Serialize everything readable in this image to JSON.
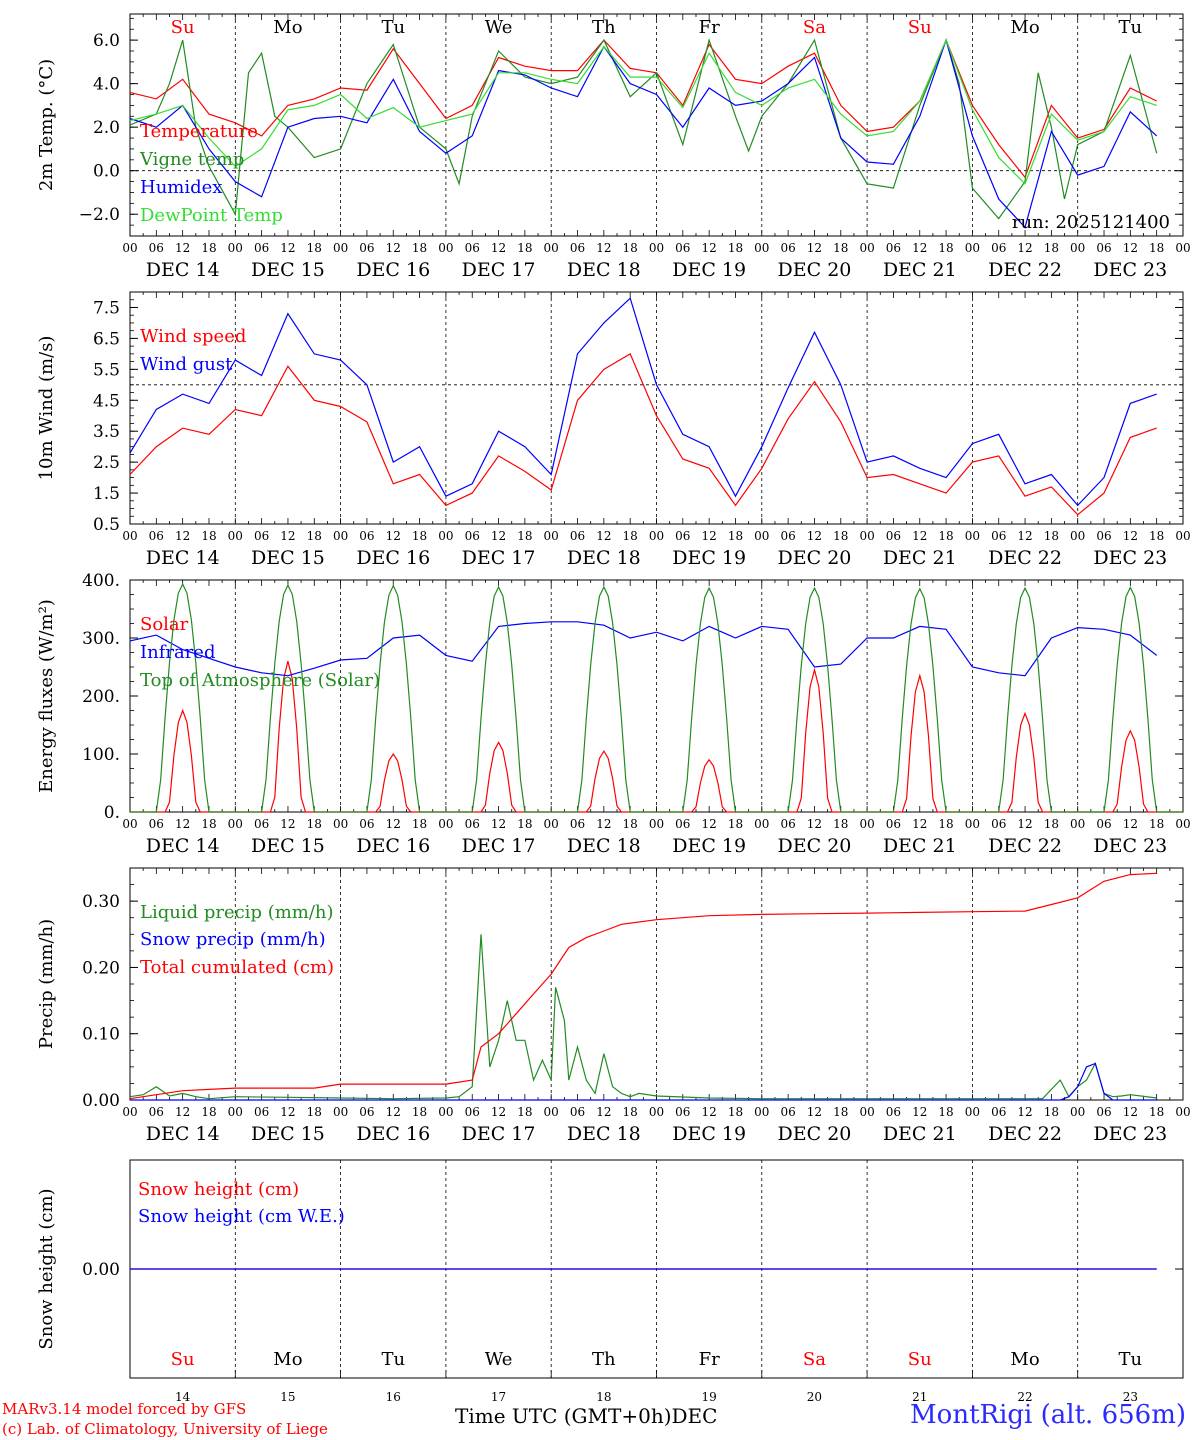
{
  "chart_data": [
    {
      "type": "line",
      "ylabel": "2m Temp. (°C)",
      "ylim": [
        -3.0,
        7.2
      ],
      "yticks": [
        -2.0,
        0.0,
        2.0,
        4.0,
        6.0
      ],
      "ytick_labels": [
        "−2.0",
        "0.0",
        "2.0",
        "4.0",
        "6.0"
      ],
      "dashed_ref": 0.0,
      "legend": [
        "Temperature",
        "Vigne temp",
        "Humidex",
        "DewPoint Temp"
      ],
      "annotation": "run: 2025121400",
      "series": [
        {
          "name": "Temperature",
          "color": "#ff0000",
          "x": [
            0,
            6,
            12,
            18,
            24,
            30,
            36,
            42,
            48,
            54,
            60,
            66,
            72,
            78,
            84,
            90,
            96,
            102,
            108,
            114,
            120,
            126,
            132,
            138,
            144,
            150,
            156,
            162,
            168,
            174,
            180,
            186,
            192,
            198,
            204,
            210,
            216,
            222,
            228,
            234
          ],
          "y": [
            3.6,
            3.3,
            4.2,
            2.6,
            2.2,
            1.6,
            3.0,
            3.3,
            3.8,
            3.7,
            5.6,
            4.0,
            2.4,
            3.0,
            5.2,
            4.8,
            4.6,
            4.6,
            6.0,
            4.7,
            4.5,
            3.0,
            5.8,
            4.2,
            4.0,
            4.8,
            5.4,
            3.0,
            1.8,
            2.0,
            3.2,
            6.0,
            3.0,
            1.2,
            -0.3,
            3.0,
            1.5,
            1.9,
            3.8,
            3.2
          ]
        },
        {
          "name": "Vigne temp",
          "color": "#228b22",
          "x": [
            0,
            6,
            9,
            12,
            15,
            18,
            24,
            27,
            30,
            33,
            36,
            42,
            48,
            54,
            60,
            66,
            72,
            75,
            78,
            84,
            90,
            96,
            102,
            108,
            114,
            120,
            126,
            132,
            138,
            141,
            144,
            150,
            156,
            162,
            168,
            174,
            180,
            186,
            189,
            192,
            198,
            204,
            207,
            210,
            213,
            216,
            222,
            228,
            234
          ],
          "y": [
            2.1,
            2.6,
            4.0,
            6.0,
            2.0,
            0.2,
            -2.0,
            4.5,
            5.4,
            2.5,
            2.0,
            0.6,
            1.0,
            4.0,
            5.8,
            2.0,
            1.0,
            -0.6,
            2.5,
            5.5,
            4.3,
            4.0,
            4.3,
            6.0,
            3.4,
            4.5,
            1.2,
            6.0,
            2.5,
            0.9,
            2.5,
            4.0,
            6.0,
            1.5,
            -0.6,
            -0.8,
            3.0,
            6.0,
            4.0,
            -0.8,
            -2.2,
            -0.5,
            4.5,
            2.0,
            -1.3,
            1.2,
            1.8,
            5.3,
            0.8
          ]
        },
        {
          "name": "Humidex",
          "color": "#0000ff",
          "x": [
            0,
            6,
            12,
            18,
            24,
            30,
            36,
            42,
            48,
            54,
            60,
            66,
            72,
            78,
            84,
            90,
            96,
            102,
            108,
            114,
            120,
            126,
            132,
            138,
            144,
            150,
            156,
            162,
            168,
            174,
            180,
            186,
            192,
            198,
            204,
            210,
            216,
            222,
            228,
            234
          ],
          "y": [
            2.4,
            2.0,
            3.0,
            1.0,
            -0.5,
            -1.2,
            2.0,
            2.4,
            2.5,
            2.2,
            4.2,
            1.8,
            0.8,
            1.6,
            4.6,
            4.4,
            3.8,
            3.4,
            5.7,
            4.0,
            3.5,
            2.0,
            3.8,
            3.0,
            3.2,
            4.0,
            5.2,
            1.5,
            0.4,
            0.3,
            2.5,
            6.0,
            1.6,
            -1.3,
            -2.6,
            1.8,
            -0.2,
            0.2,
            2.7,
            1.6
          ]
        },
        {
          "name": "DewPoint Temp",
          "color": "#33dd33",
          "x": [
            0,
            6,
            12,
            18,
            24,
            30,
            36,
            42,
            48,
            54,
            60,
            66,
            72,
            78,
            84,
            90,
            96,
            102,
            108,
            114,
            120,
            126,
            132,
            138,
            144,
            150,
            156,
            162,
            168,
            174,
            180,
            186,
            192,
            198,
            204,
            210,
            216,
            222,
            228,
            234
          ],
          "y": [
            2.3,
            2.6,
            3.0,
            1.5,
            0.2,
            1.0,
            2.8,
            3.0,
            3.5,
            2.4,
            2.9,
            2.0,
            2.3,
            2.6,
            4.5,
            4.5,
            4.2,
            4.0,
            5.7,
            4.3,
            4.3,
            2.9,
            5.4,
            3.6,
            3.0,
            3.8,
            4.2,
            2.6,
            1.6,
            1.8,
            3.2,
            6.0,
            2.8,
            0.6,
            -0.6,
            2.6,
            1.4,
            1.8,
            3.4,
            3.0
          ]
        }
      ]
    },
    {
      "type": "line",
      "ylabel": "10m Wind (m/s)",
      "ylim": [
        0.5,
        8.0
      ],
      "yticks": [
        0.5,
        1.5,
        2.5,
        3.5,
        4.5,
        5.5,
        6.5,
        7.5
      ],
      "ytick_labels": [
        "0.5",
        "1.5",
        "2.5",
        "3.5",
        "4.5",
        "5.5",
        "6.5",
        "7.5"
      ],
      "dashed_ref": 5.0,
      "legend": [
        "Wind speed",
        "Wind gust"
      ],
      "series": [
        {
          "name": "Wind speed",
          "color": "#ff0000",
          "x": [
            0,
            6,
            12,
            18,
            24,
            30,
            36,
            42,
            48,
            54,
            60,
            66,
            72,
            78,
            84,
            90,
            96,
            102,
            108,
            114,
            120,
            126,
            132,
            138,
            144,
            150,
            156,
            162,
            168,
            174,
            180,
            186,
            192,
            198,
            204,
            210,
            216,
            222,
            228,
            234
          ],
          "y": [
            2.1,
            3.0,
            3.6,
            3.4,
            4.2,
            4.0,
            5.6,
            4.5,
            4.3,
            3.8,
            1.8,
            2.1,
            1.1,
            1.5,
            2.7,
            2.2,
            1.6,
            4.5,
            5.5,
            6.0,
            4.0,
            2.6,
            2.3,
            1.1,
            2.3,
            3.9,
            5.1,
            3.8,
            2.0,
            2.1,
            1.8,
            1.5,
            2.5,
            2.7,
            1.4,
            1.7,
            0.8,
            1.5,
            3.3,
            3.6
          ]
        },
        {
          "name": "Wind gust",
          "color": "#0000ff",
          "x": [
            0,
            6,
            12,
            18,
            24,
            30,
            36,
            42,
            48,
            54,
            60,
            66,
            72,
            78,
            84,
            90,
            96,
            102,
            108,
            114,
            120,
            126,
            132,
            138,
            144,
            150,
            156,
            162,
            168,
            174,
            180,
            186,
            192,
            198,
            204,
            210,
            216,
            222,
            228,
            234
          ],
          "y": [
            2.8,
            4.2,
            4.7,
            4.4,
            5.8,
            5.3,
            7.3,
            6.0,
            5.8,
            5.0,
            2.5,
            3.0,
            1.4,
            1.8,
            3.5,
            3.0,
            2.1,
            6.0,
            7.0,
            7.8,
            5.0,
            3.4,
            3.0,
            1.4,
            3.0,
            4.9,
            6.7,
            5.0,
            2.5,
            2.7,
            2.3,
            2.0,
            3.1,
            3.4,
            1.8,
            2.1,
            1.1,
            2.0,
            4.4,
            4.7
          ]
        }
      ]
    },
    {
      "type": "line",
      "ylabel": "Energy fluxes (W/m²)",
      "ylim": [
        0,
        400
      ],
      "yticks": [
        0,
        100,
        200,
        300,
        400
      ],
      "ytick_labels": [
        "0.",
        "100.",
        "200.",
        "300.",
        "400."
      ],
      "legend": [
        "Solar",
        "Infrared",
        "Top of Atmosphere (Solar)"
      ],
      "series": [
        {
          "name": "Solar",
          "color": "#ff0000",
          "days": [
            0,
            1,
            2,
            3,
            4,
            5,
            6,
            7,
            8,
            9
          ],
          "peak": [
            175,
            260,
            100,
            120,
            105,
            90,
            245,
            235,
            170,
            140
          ]
        },
        {
          "name": "Infrared",
          "color": "#0000ff",
          "x": [
            0,
            6,
            12,
            18,
            24,
            30,
            36,
            42,
            48,
            54,
            60,
            66,
            72,
            78,
            84,
            90,
            96,
            102,
            108,
            114,
            120,
            126,
            132,
            138,
            144,
            150,
            156,
            162,
            168,
            174,
            180,
            186,
            192,
            198,
            204,
            210,
            216,
            222,
            228,
            234
          ],
          "y": [
            295,
            305,
            280,
            265,
            250,
            240,
            235,
            248,
            262,
            265,
            300,
            305,
            270,
            260,
            320,
            325,
            328,
            328,
            322,
            300,
            310,
            295,
            320,
            300,
            320,
            315,
            250,
            255,
            300,
            300,
            320,
            315,
            250,
            240,
            235,
            300,
            318,
            315,
            305,
            270
          ]
        },
        {
          "name": "Top of Atmosphere (Solar)",
          "color": "#228b22",
          "days": [
            0,
            1,
            2,
            3,
            4,
            5,
            6,
            7,
            8,
            9
          ],
          "peak": [
            393,
            391,
            390,
            388,
            388,
            386,
            386,
            385,
            386,
            387
          ]
        }
      ]
    },
    {
      "type": "line",
      "ylabel": "Precip (mm/h)",
      "ylim": [
        0,
        0.35
      ],
      "yticks": [
        0.0,
        0.1,
        0.2,
        0.3
      ],
      "ytick_labels": [
        "0.00",
        "0.10",
        "0.20",
        "0.30"
      ],
      "legend": [
        "Liquid precip (mm/h)",
        "Snow precip (mm/h)",
        "Total cumulated (cm)"
      ],
      "series": [
        {
          "name": "Liquid precip (mm/h)",
          "color": "#228b22",
          "x": [
            0,
            3,
            6,
            9,
            12,
            15,
            18,
            24,
            36,
            48,
            60,
            72,
            75,
            78,
            80,
            82,
            84,
            86,
            88,
            90,
            92,
            94,
            96,
            97,
            99,
            100,
            102,
            104,
            106,
            108,
            110,
            112,
            114,
            116,
            120,
            132,
            144,
            168,
            192,
            208,
            212,
            214,
            216,
            218,
            220,
            222,
            224,
            226,
            228,
            234
          ],
          "y": [
            0.005,
            0.008,
            0.02,
            0.006,
            0.01,
            0.005,
            0.002,
            0.005,
            0.004,
            0.003,
            0.002,
            0.003,
            0.005,
            0.02,
            0.25,
            0.05,
            0.09,
            0.15,
            0.09,
            0.09,
            0.03,
            0.06,
            0.03,
            0.17,
            0.12,
            0.03,
            0.08,
            0.03,
            0.01,
            0.07,
            0.02,
            0.01,
            0.005,
            0.01,
            0.006,
            0.003,
            0.002,
            0.002,
            0.002,
            0.002,
            0.03,
            0.005,
            0.02,
            0.03,
            0.055,
            0.01,
            0.005,
            0.006,
            0.008,
            0.003
          ]
        },
        {
          "name": "Snow precip (mm/h)",
          "color": "#0000ff",
          "x": [
            0,
            204,
            206,
            212,
            214,
            216,
            218,
            220,
            222,
            224,
            234
          ],
          "y": [
            0,
            0,
            0,
            0,
            0.005,
            0.02,
            0.05,
            0.055,
            0.01,
            0,
            0
          ]
        },
        {
          "name": "Total cumulated (cm)",
          "color": "#ff0000",
          "x": [
            0,
            6,
            12,
            18,
            24,
            30,
            36,
            42,
            48,
            54,
            60,
            66,
            72,
            78,
            80,
            84,
            88,
            92,
            96,
            100,
            104,
            108,
            112,
            120,
            132,
            144,
            156,
            168,
            180,
            192,
            204,
            210,
            216,
            222,
            228,
            234
          ],
          "y": [
            0.002,
            0.008,
            0.014,
            0.016,
            0.018,
            0.018,
            0.018,
            0.018,
            0.024,
            0.024,
            0.024,
            0.024,
            0.024,
            0.03,
            0.08,
            0.1,
            0.13,
            0.16,
            0.19,
            0.23,
            0.245,
            0.255,
            0.265,
            0.272,
            0.278,
            0.28,
            0.281,
            0.282,
            0.283,
            0.284,
            0.285,
            0.295,
            0.305,
            0.33,
            0.34,
            0.342
          ]
        }
      ]
    },
    {
      "type": "line",
      "ylabel": "Snow height (cm)",
      "ylim": [
        -0.01,
        0.01
      ],
      "yticks": [
        0.0
      ],
      "ytick_labels": [
        "0.00"
      ],
      "legend": [
        "Snow height (cm)",
        "Snow height (cm W.E.)"
      ],
      "series": [
        {
          "name": "Snow height (cm)",
          "color": "#ff0000",
          "x": [
            0,
            234
          ],
          "y": [
            0,
            0
          ]
        },
        {
          "name": "Snow height (cm W.E.)",
          "color": "#0000ff",
          "x": [
            0,
            234
          ],
          "y": [
            0,
            0
          ]
        }
      ]
    }
  ],
  "axis": {
    "hour_labels": [
      "00",
      "06",
      "12",
      "18"
    ],
    "end_hour_label": "00",
    "date_labels": [
      "DEC 14",
      "DEC 15",
      "DEC 16",
      "DEC 17",
      "DEC 18",
      "DEC 19",
      "DEC 20",
      "DEC 21",
      "DEC 22",
      "DEC 23"
    ],
    "weekdays": [
      "Su",
      "Mo",
      "Tu",
      "We",
      "Th",
      "Fr",
      "Sa",
      "Su",
      "Mo",
      "Tu"
    ],
    "weekend_flags": [
      true,
      false,
      false,
      false,
      false,
      false,
      true,
      true,
      false,
      false
    ],
    "day_numbers": [
      "14",
      "15",
      "16",
      "17",
      "18",
      "19",
      "20",
      "21",
      "22",
      "23"
    ],
    "xlabel": "Time UTC (GMT+0h)",
    "month": "DEC"
  },
  "footer": {
    "model": "MARv3.14 model forced by GFS",
    "credit": "(c) Lab. of Climatology, University of Liege",
    "site": "MontRigi (alt. 656m)"
  },
  "colors": {
    "red": "#ff0000",
    "green": "#228b22",
    "blue": "#0000ff",
    "lightgreen": "#33dd33",
    "site": "#2a2aff"
  }
}
